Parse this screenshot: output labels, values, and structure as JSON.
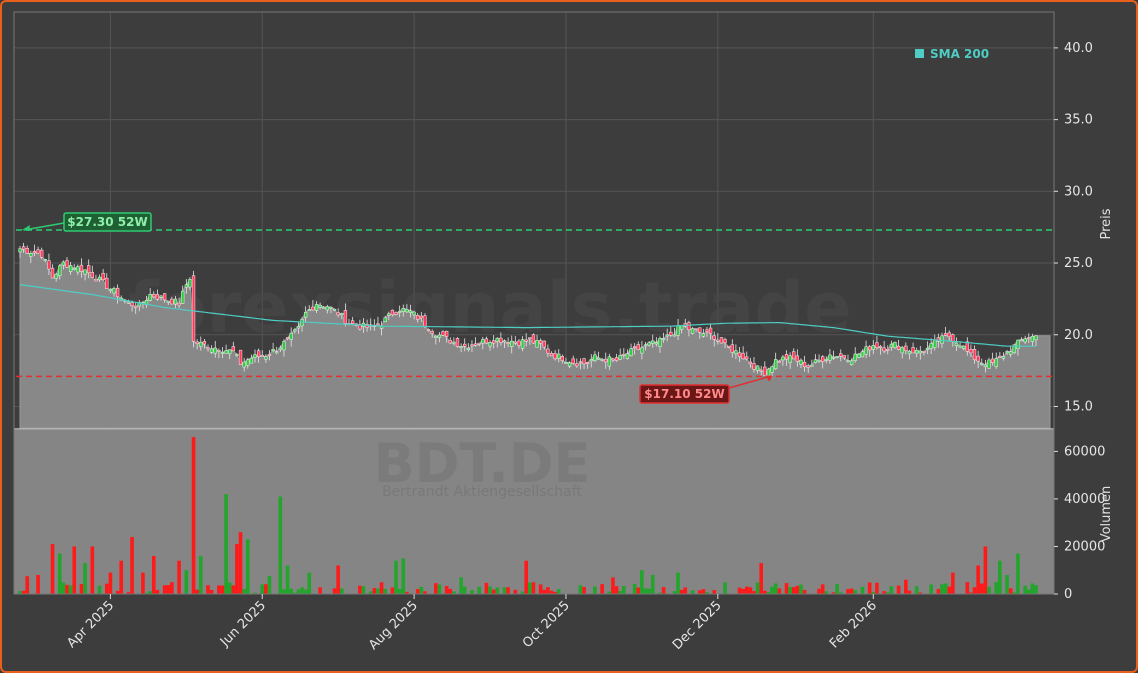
{
  "chart_data": {
    "type": "candlestick",
    "ticker": "BDT.DE",
    "company": "Bertrandt Aktiengesellschaft",
    "watermark": "forexsignals.trade",
    "legend": {
      "label": "SMA 200",
      "color": "#4ecdc4",
      "position": "top-right"
    },
    "price_axis": {
      "label": "Preis",
      "ylim": [
        13.5,
        42.5
      ],
      "ticks": [
        "15.0",
        "20.0",
        "25.0",
        "30.0",
        "35.0",
        "40.0"
      ]
    },
    "volume_axis": {
      "label": "Volumen",
      "ylim": [
        0,
        69000
      ],
      "ticks": [
        "0",
        "20000",
        "40000",
        "60000"
      ]
    },
    "x_axis": {
      "labels": [
        "Apr 2025",
        "Jun 2025",
        "Aug 2025",
        "Oct 2025",
        "Dec 2025",
        "Feb 2026"
      ]
    },
    "grid": true,
    "high_52w": {
      "value": 27.3,
      "label": "$27.30 52W",
      "color": "#2ecc71"
    },
    "low_52w": {
      "value": 17.1,
      "label": "$17.10 52W",
      "color": "#e03030"
    },
    "close_anchors": [
      [
        0,
        26.0
      ],
      [
        6,
        25.6
      ],
      [
        9,
        24.0
      ],
      [
        12,
        25.0
      ],
      [
        18,
        24.5
      ],
      [
        22,
        23.8
      ],
      [
        26,
        23.0
      ],
      [
        30,
        22.2
      ],
      [
        33,
        22.0
      ],
      [
        36,
        22.8
      ],
      [
        40,
        22.5
      ],
      [
        44,
        22.2
      ],
      [
        46,
        23.5
      ],
      [
        47,
        24.0
      ],
      [
        48,
        19.5
      ],
      [
        52,
        19.2
      ],
      [
        56,
        19.0
      ],
      [
        59,
        18.8
      ],
      [
        61,
        18.0
      ],
      [
        64,
        18.4
      ],
      [
        68,
        18.6
      ],
      [
        71,
        19.0
      ],
      [
        74,
        19.6
      ],
      [
        77,
        20.4
      ],
      [
        79,
        21.5
      ],
      [
        82,
        22.2
      ],
      [
        85,
        22.0
      ],
      [
        88,
        21.5
      ],
      [
        91,
        20.8
      ],
      [
        94,
        20.6
      ],
      [
        97,
        20.5
      ],
      [
        100,
        20.8
      ],
      [
        103,
        21.5
      ],
      [
        105,
        21.8
      ],
      [
        108,
        21.6
      ],
      [
        111,
        21.0
      ],
      [
        114,
        20.3
      ],
      [
        117,
        19.8
      ],
      [
        120,
        19.5
      ],
      [
        123,
        19.2
      ],
      [
        126,
        19.4
      ],
      [
        129,
        19.6
      ],
      [
        132,
        19.7
      ],
      [
        135,
        19.6
      ],
      [
        138,
        19.5
      ],
      [
        141,
        19.6
      ],
      [
        144,
        19.3
      ],
      [
        147,
        18.6
      ],
      [
        150,
        18.4
      ],
      [
        153,
        18.1
      ],
      [
        156,
        18.0
      ],
      [
        159,
        18.4
      ],
      [
        162,
        18.3
      ],
      [
        165,
        18.2
      ],
      [
        168,
        18.7
      ],
      [
        171,
        19.0
      ],
      [
        174,
        19.3
      ],
      [
        177,
        19.5
      ],
      [
        180,
        20.0
      ],
      [
        183,
        20.6
      ],
      [
        186,
        20.3
      ],
      [
        189,
        20.1
      ],
      [
        192,
        19.9
      ],
      [
        195,
        19.2
      ],
      [
        198,
        18.8
      ],
      [
        201,
        18.3
      ],
      [
        204,
        17.6
      ],
      [
        206,
        17.4
      ],
      [
        209,
        18.2
      ],
      [
        212,
        18.4
      ],
      [
        215,
        18.2
      ],
      [
        218,
        17.8
      ],
      [
        221,
        18.2
      ],
      [
        224,
        18.6
      ],
      [
        227,
        18.5
      ],
      [
        230,
        18.4
      ],
      [
        233,
        18.8
      ],
      [
        236,
        19.3
      ],
      [
        239,
        19.1
      ],
      [
        242,
        19.3
      ],
      [
        245,
        19.0
      ],
      [
        248,
        18.8
      ],
      [
        251,
        19.0
      ],
      [
        254,
        19.6
      ],
      [
        257,
        19.9
      ],
      [
        260,
        19.4
      ],
      [
        263,
        18.5
      ],
      [
        266,
        18.1
      ],
      [
        269,
        18.0
      ],
      [
        272,
        18.6
      ],
      [
        275,
        19.2
      ],
      [
        278,
        19.8
      ],
      [
        281,
        19.9
      ]
    ],
    "sma_200": [
      [
        0,
        23.5
      ],
      [
        20,
        22.8
      ],
      [
        40,
        21.9
      ],
      [
        70,
        21.0
      ],
      [
        100,
        20.6
      ],
      [
        140,
        20.5
      ],
      [
        180,
        20.6
      ],
      [
        195,
        20.8
      ],
      [
        210,
        20.85
      ],
      [
        225,
        20.5
      ],
      [
        240,
        19.9
      ],
      [
        260,
        19.5
      ],
      [
        273,
        19.2
      ],
      [
        281,
        19.2
      ]
    ],
    "volume_spikes": [
      [
        2,
        7500
      ],
      [
        5,
        8000
      ],
      [
        9,
        21000
      ],
      [
        11,
        17000
      ],
      [
        15,
        20000
      ],
      [
        18,
        13000
      ],
      [
        20,
        20000
      ],
      [
        25,
        9000
      ],
      [
        28,
        14000
      ],
      [
        31,
        24000
      ],
      [
        34,
        9000
      ],
      [
        37,
        16000
      ],
      [
        42,
        5000
      ],
      [
        44,
        14000
      ],
      [
        46,
        10000
      ],
      [
        48,
        66000
      ],
      [
        50,
        16000
      ],
      [
        57,
        42000
      ],
      [
        60,
        21000
      ],
      [
        61,
        26000
      ],
      [
        63,
        23000
      ],
      [
        69,
        7500
      ],
      [
        72,
        41000
      ],
      [
        74,
        12000
      ],
      [
        80,
        9000
      ],
      [
        88,
        12000
      ],
      [
        104,
        14000
      ],
      [
        106,
        15000
      ],
      [
        122,
        7000
      ],
      [
        140,
        14000
      ],
      [
        164,
        7000
      ],
      [
        172,
        10000
      ],
      [
        175,
        8000
      ],
      [
        182,
        9000
      ],
      [
        205,
        13000
      ],
      [
        245,
        6000
      ],
      [
        258,
        9000
      ],
      [
        262,
        5000
      ],
      [
        265,
        12000
      ],
      [
        267,
        20000
      ],
      [
        271,
        14000
      ],
      [
        273,
        8000
      ],
      [
        276,
        17000
      ]
    ]
  }
}
